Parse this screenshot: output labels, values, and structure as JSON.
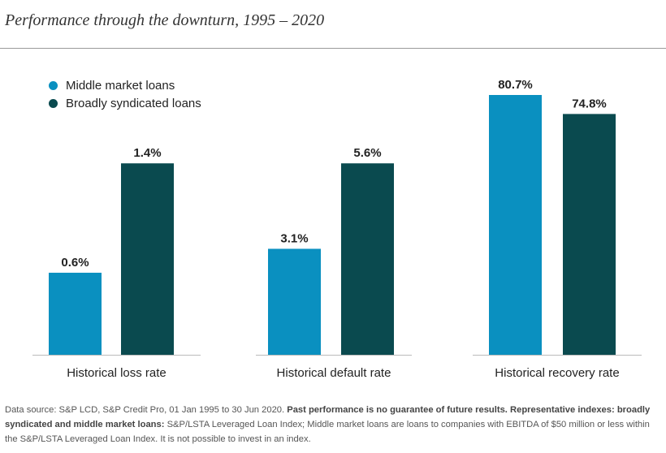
{
  "title": "Performance through the downturn, 1995 – 2020",
  "colors": {
    "middle_market": "#0a90c0",
    "broadly_syndicated": "#0a4a4f",
    "baseline": "#bbbbbb"
  },
  "chart_data": [
    {
      "type": "bar",
      "category": "Historical loss rate",
      "series": [
        {
          "name": "Middle market loans",
          "value": 0.6,
          "label": "0.6%"
        },
        {
          "name": "Broadly syndicated loans",
          "value": 1.4,
          "label": "1.4%"
        }
      ],
      "ylim": [
        0,
        1.9
      ]
    },
    {
      "type": "bar",
      "category": "Historical default rate",
      "series": [
        {
          "name": "Middle market loans",
          "value": 3.1,
          "label": "3.1%"
        },
        {
          "name": "Broadly syndicated loans",
          "value": 5.6,
          "label": "5.6%"
        }
      ],
      "ylim": [
        0,
        7.6
      ]
    },
    {
      "type": "bar",
      "category": "Historical recovery rate",
      "series": [
        {
          "name": "Middle market loans",
          "value": 80.7,
          "label": "80.7%"
        },
        {
          "name": "Broadly syndicated loans",
          "value": 74.8,
          "label": "74.8%"
        }
      ],
      "ylim": [
        0,
        80.7
      ]
    }
  ],
  "legend": {
    "placement": "top-left",
    "items": [
      {
        "label": "Middle market loans"
      },
      {
        "label": "Broadly syndicated loans"
      }
    ]
  },
  "footnote": {
    "part1": "Data source: S&P LCD, S&P Credit Pro, 01 Jan 1995 to 30 Jun 2020. ",
    "part2_bold": "Past performance is no guarantee of future results. Representative indexes: broadly syndicated and middle market loans:",
    "part3": " S&P/LSTA Leveraged Loan Index; Middle market loans are loans to companies with EBITDA of $50 million or less within the S&P/LSTA Leveraged Loan Index. It is not possible to invest in an index."
  }
}
